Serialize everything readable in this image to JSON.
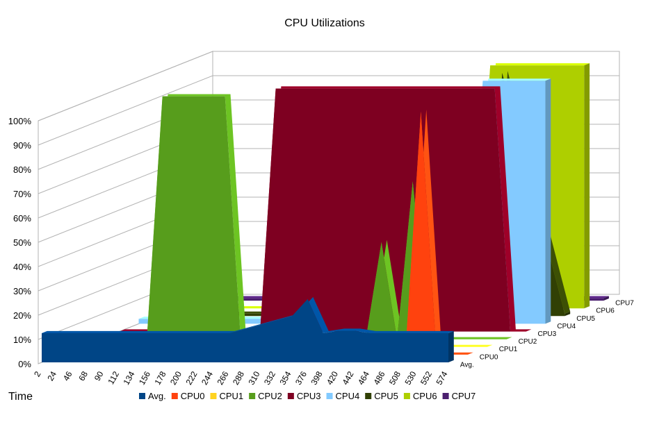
{
  "chart_data": {
    "type": "area",
    "title": "CPU Utilizations",
    "xlabel": "Time",
    "ylabel": "",
    "ylim": [
      0,
      100
    ],
    "y_ticks": [
      "0%",
      "10%",
      "20%",
      "30%",
      "40%",
      "50%",
      "60%",
      "70%",
      "80%",
      "90%",
      "100%"
    ],
    "x_ticks": [
      "2",
      "24",
      "46",
      "68",
      "90",
      "112",
      "134",
      "156",
      "178",
      "200",
      "222",
      "244",
      "266",
      "288",
      "310",
      "332",
      "354",
      "376",
      "398",
      "420",
      "442",
      "464",
      "486",
      "508",
      "530",
      "552",
      "574"
    ],
    "depth_labels": [
      "Avg.",
      "CPU0",
      "CPU1",
      "CPU2",
      "CPU3",
      "CPU4",
      "CPU5",
      "CPU6",
      "CPU7"
    ],
    "grid": true,
    "legend_position": "bottom",
    "series": [
      {
        "name": "Avg.",
        "color": "#004586",
        "x": [
          "2",
          "90",
          "178",
          "266",
          "354",
          "376",
          "398",
          "420",
          "442",
          "464",
          "486",
          "508",
          "530",
          "552",
          "574"
        ],
        "values": [
          12,
          12,
          12,
          12,
          19,
          26,
          12,
          13,
          13,
          12,
          12,
          12,
          12,
          12,
          12
        ]
      },
      {
        "name": "CPU0",
        "color": "#ff420e",
        "x": [
          "2",
          "486",
          "508",
          "530",
          "552",
          "574"
        ],
        "values": [
          0,
          0,
          100,
          0,
          0,
          0
        ]
      },
      {
        "name": "CPU1",
        "color": "#ffd320",
        "x": [
          "2",
          "574"
        ],
        "values": [
          0,
          0
        ]
      },
      {
        "name": "CPU2",
        "color": "#579d1c",
        "x": [
          "2",
          "68",
          "90",
          "178",
          "200",
          "376",
          "398",
          "420",
          "442",
          "464",
          "486",
          "574"
        ],
        "values": [
          0,
          0,
          100,
          100,
          0,
          0,
          40,
          0,
          65,
          0,
          0,
          0
        ]
      },
      {
        "name": "CPU3",
        "color": "#7e0021",
        "x": [
          "2",
          "200",
          "222",
          "530",
          "552",
          "574"
        ],
        "values": [
          0,
          0,
          100,
          100,
          0,
          0
        ]
      },
      {
        "name": "CPU4",
        "color": "#83caff",
        "x": [
          "2",
          "464",
          "486",
          "574"
        ],
        "values": [
          2,
          2,
          100,
          100
        ]
      },
      {
        "name": "CPU5",
        "color": "#314004",
        "x": [
          "2",
          "464",
          "486",
          "574"
        ],
        "values": [
          1,
          1,
          100,
          1
        ]
      },
      {
        "name": "CPU6",
        "color": "#aecf00",
        "x": [
          "2",
          "420",
          "442",
          "574"
        ],
        "values": [
          0,
          0,
          100,
          100
        ]
      },
      {
        "name": "CPU7",
        "color": "#4b1f6f",
        "x": [
          "2",
          "574"
        ],
        "values": [
          1,
          1
        ]
      }
    ]
  }
}
